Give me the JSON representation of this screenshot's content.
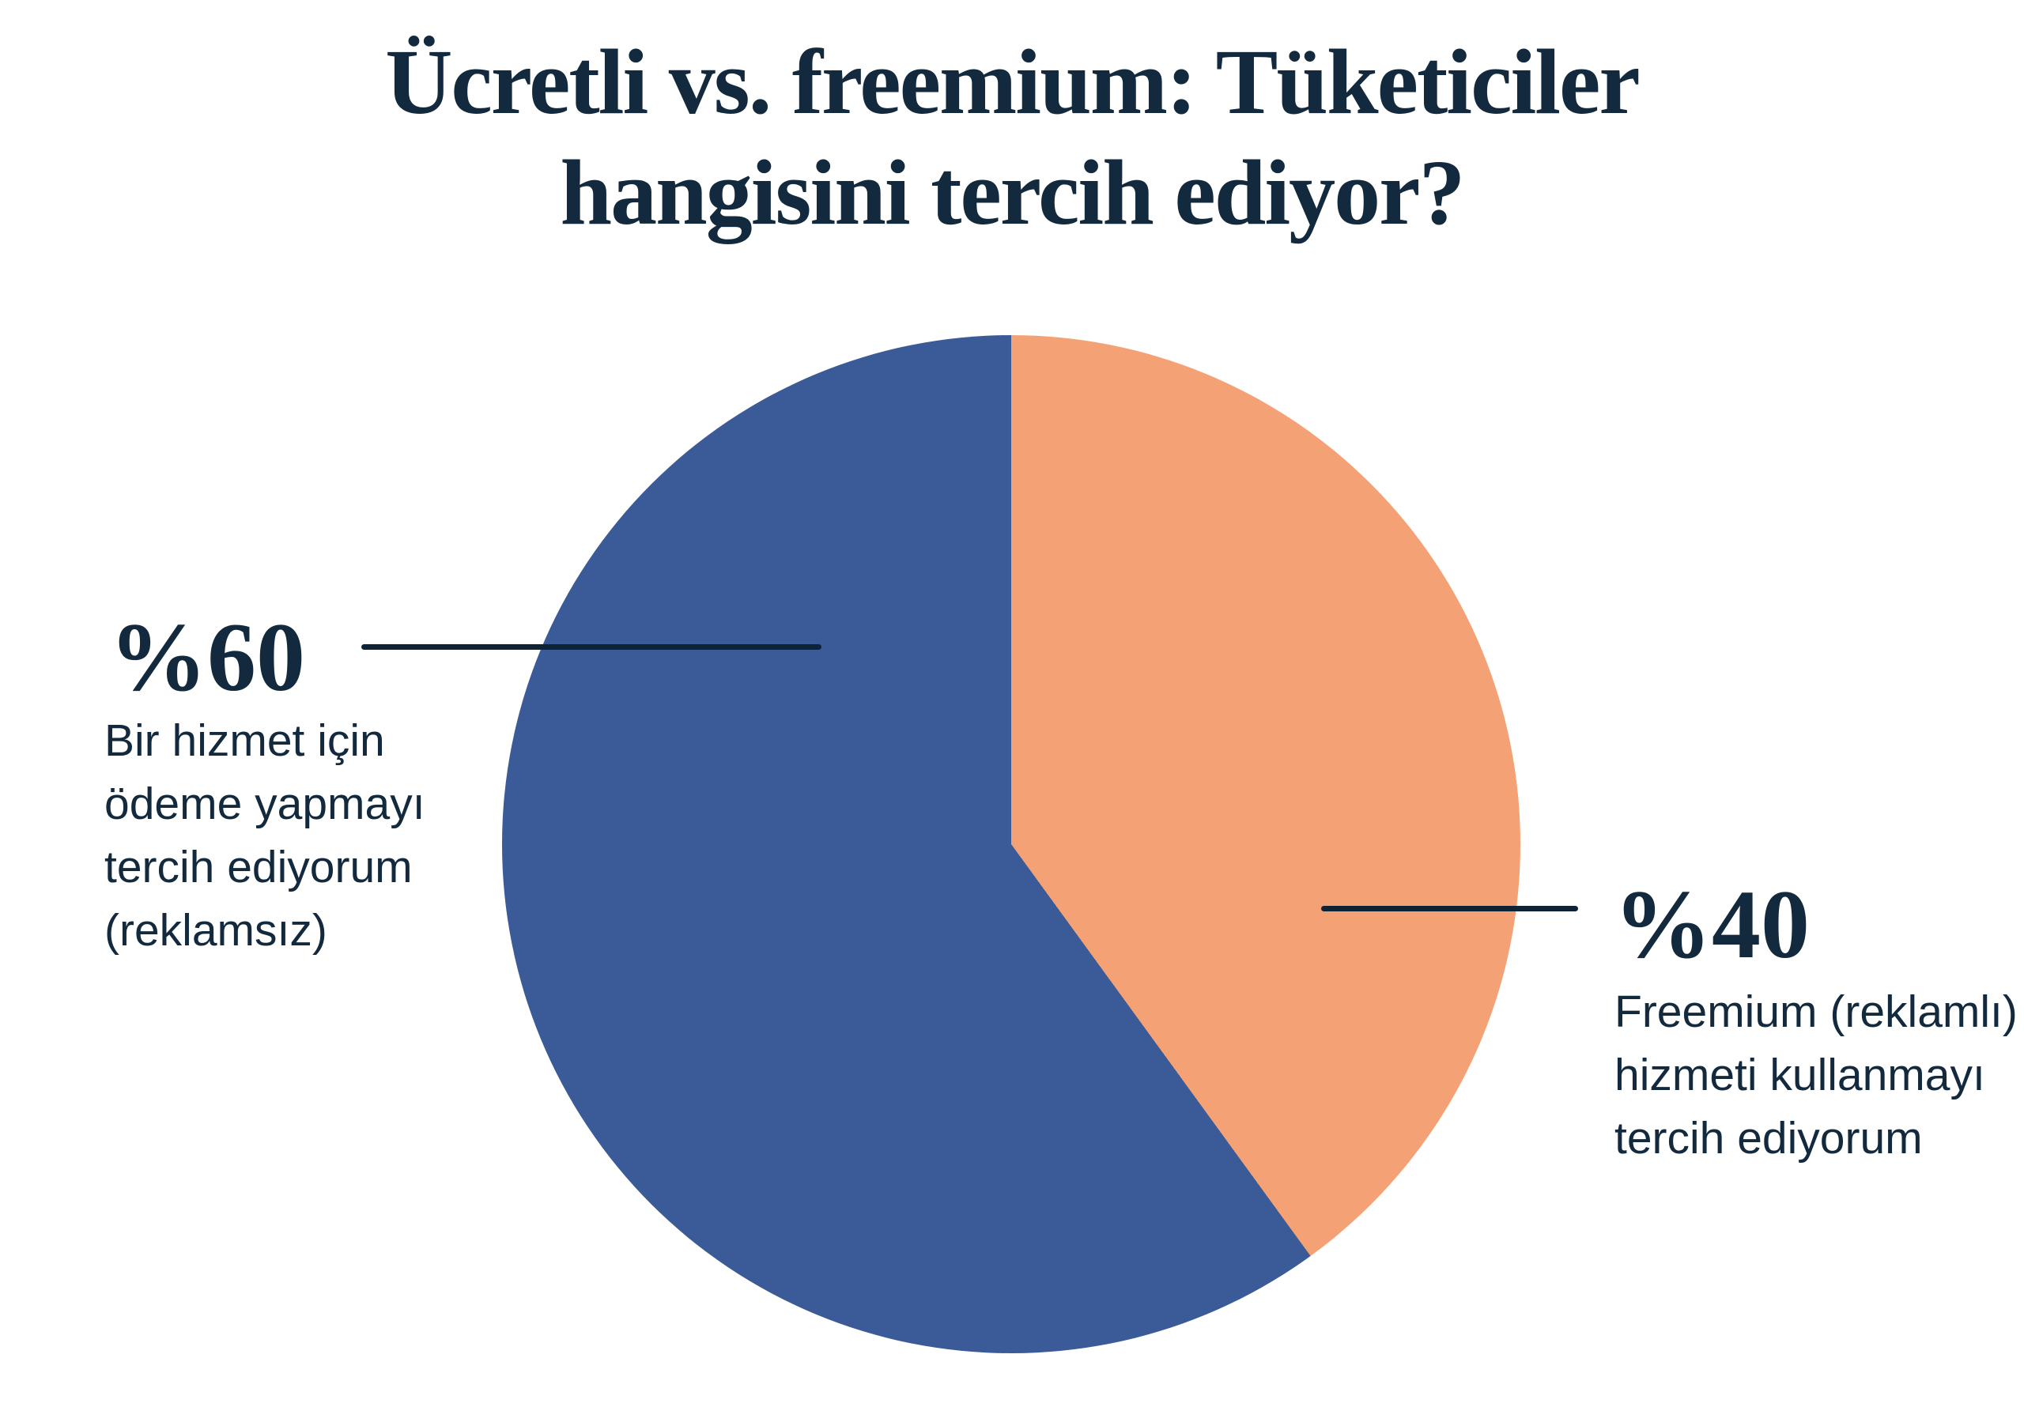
{
  "title": {
    "line1": "Ücretli vs. freemium: Tüketiciler",
    "line2": "hangisini tercih ediyor?"
  },
  "chart_data": {
    "type": "pie",
    "title": "Ücretli vs. freemium: Tüketiciler hangisini tercih ediyor?",
    "start_angle_deg": 0,
    "direction": "clockwise",
    "legend_position": "callout-labels",
    "slices": [
      {
        "name": "freemium",
        "value_label": "%40",
        "percent": 40,
        "color": "#F3A175",
        "label": "Freemium (reklamlı) hizmeti kullanmayı tercih ediyorum",
        "label_lines": [
          "Freemium (reklamlı)",
          "hizmeti kullanmayı",
          "tercih ediyorum"
        ]
      },
      {
        "name": "ucretli",
        "value_label": "%60",
        "percent": 60,
        "color": "#3A5B97",
        "label": "Bir hizmet için ödeme yapmayı tercih ediyorum (reklamsız)",
        "label_lines": [
          "Bir hizmet için",
          "ödeme yapmayı",
          "tercih ediyorum",
          "(reklamsız)"
        ]
      }
    ]
  },
  "colors": {
    "background": "#FFFFFF",
    "text": "#13293D",
    "leader_line": "#0F2336",
    "slice_blue": "#3A5B97",
    "slice_orange": "#F3A175"
  }
}
